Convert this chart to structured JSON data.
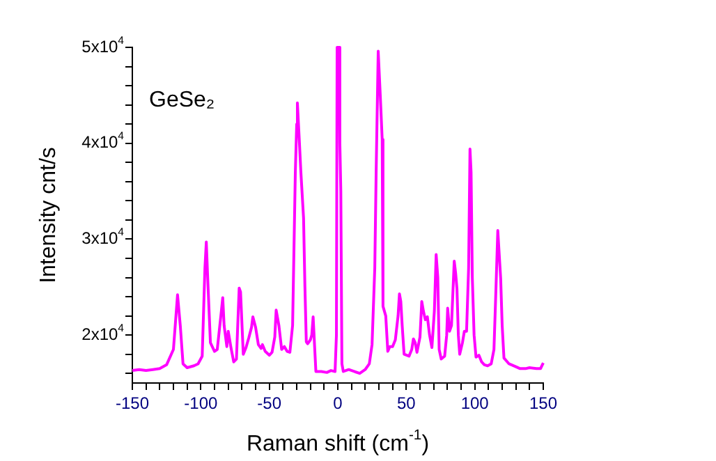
{
  "chart_data": {
    "type": "line",
    "xlabel": "Raman shift (cm$^{-1}$)",
    "ylabel": "Intensity cnt/s",
    "annotations": [
      "GeSe₂"
    ],
    "xlim": [
      -150,
      150
    ],
    "xticks": [
      -150,
      {
        "value": -140,
        "label": null
      },
      {
        "value": -130,
        "label": null
      },
      {
        "value": -120,
        "label": null
      },
      {
        "value": -110,
        "label": null
      },
      -100,
      {
        "value": -90,
        "label": null
      },
      {
        "value": -80,
        "label": null
      },
      {
        "value": -70,
        "label": null
      },
      {
        "value": -60,
        "label": null
      },
      -50,
      {
        "value": -40,
        "label": null
      },
      {
        "value": -30,
        "label": null
      },
      {
        "value": -20,
        "label": null
      },
      {
        "value": -10,
        "label": null
      },
      0,
      {
        "value": 10,
        "label": null
      },
      {
        "value": 20,
        "label": null
      },
      {
        "value": 30,
        "label": null
      },
      {
        "value": 40,
        "label": null
      },
      50,
      {
        "value": 60,
        "label": null
      },
      {
        "value": 70,
        "label": null
      },
      {
        "value": 80,
        "label": null
      },
      {
        "value": 90,
        "label": null
      },
      100,
      {
        "value": 110,
        "label": null
      },
      {
        "value": 120,
        "label": null
      },
      {
        "value": 130,
        "label": null
      },
      {
        "value": 140,
        "label": null
      },
      150
    ],
    "ylim": [
      15000,
      50000
    ],
    "yticks": [
      {
        "value": 16000,
        "label": null
      },
      {
        "value": 18000,
        "label": null
      },
      {
        "value": 20000,
        "label": "2x10$^{4}$"
      },
      {
        "value": 22000,
        "label": null
      },
      {
        "value": 24000,
        "label": null
      },
      {
        "value": 26000,
        "label": null
      },
      {
        "value": 28000,
        "label": null
      },
      {
        "value": 30000,
        "label": "3x10$^{4}$"
      },
      {
        "value": 32000,
        "label": null
      },
      {
        "value": 34000,
        "label": null
      },
      {
        "value": 36000,
        "label": null
      },
      {
        "value": 38000,
        "label": null
      },
      {
        "value": 40000,
        "label": "4x10$^{4}$"
      },
      {
        "value": 42000,
        "label": null
      },
      {
        "value": 44000,
        "label": null
      },
      {
        "value": 46000,
        "label": null
      },
      {
        "value": 48000,
        "label": null
      },
      {
        "value": 50000,
        "label": "5x10$^{4}$"
      }
    ],
    "grid": false,
    "legend": false,
    "marker": "none",
    "line_style": "solid",
    "series": [
      {
        "color": "#ff00ff",
        "x": [
          -150,
          -145,
          -140,
          -135,
          -130,
          -125,
          -120,
          -117,
          -115,
          -113,
          -110,
          -105,
          -102,
          -99,
          -97,
          -96,
          -95,
          -93,
          -90,
          -88,
          -85,
          -84,
          -83,
          -81,
          -80,
          -78,
          -76,
          -74,
          -72,
          -71,
          -69,
          -67,
          -65,
          -63,
          -62,
          -60,
          -58,
          -56,
          -55,
          -53,
          -50,
          -48,
          -46,
          -45,
          -43,
          -41,
          -39,
          -37,
          -35,
          -33,
          -31,
          -30,
          -29.5,
          -28,
          -27,
          -25,
          -24,
          -23,
          -22,
          -20,
          -19,
          -18,
          -17,
          -16,
          -12,
          -8,
          -5,
          -2,
          -1,
          -0.5,
          1,
          1.5,
          2.2,
          3,
          4,
          8,
          12,
          16,
          20,
          23,
          25,
          27,
          28,
          29.5,
          31,
          32.4,
          33,
          35,
          36.5,
          38,
          40,
          42,
          44,
          45,
          46,
          47,
          48.4,
          52,
          54,
          55.2,
          56.5,
          57.8,
          60,
          61.3,
          62.5,
          63.9,
          65.4,
          67,
          68.7,
          70.5,
          71.8,
          73,
          74,
          75.5,
          78,
          79.5,
          80.2,
          81.6,
          83,
          85,
          86,
          87,
          88,
          89,
          91,
          92.4,
          94,
          95.5,
          96.5,
          97.3,
          98.2,
          99.5,
          100.9,
          103,
          105,
          107,
          109.4,
          112,
          114,
          115.5,
          116.8,
          118.9,
          120,
          121.3,
          125,
          130,
          133.1,
          137,
          140,
          145,
          148,
          150
        ],
        "values": [
          16300,
          16400,
          16300,
          16400,
          16500,
          16900,
          18500,
          24200,
          21000,
          17000,
          16600,
          16800,
          17000,
          17800,
          27000,
          29700,
          26000,
          19200,
          18300,
          18500,
          22500,
          23900,
          21000,
          18800,
          20400,
          18700,
          17200,
          17500,
          24900,
          24500,
          18000,
          18700,
          19700,
          20800,
          21900,
          20800,
          19000,
          18600,
          19000,
          18300,
          17900,
          18200,
          19800,
          22600,
          21000,
          18500,
          18800,
          18300,
          18200,
          21000,
          37000,
          42000,
          44200,
          40000,
          37100,
          32200,
          25000,
          19300,
          19100,
          19500,
          20000,
          21900,
          19000,
          16200,
          16200,
          16100,
          16300,
          16200,
          20000,
          50000,
          50000,
          40000,
          35000,
          17000,
          16200,
          16400,
          16200,
          16000,
          16400,
          17000,
          19000,
          27000,
          37000,
          49600,
          45000,
          40400,
          23000,
          22000,
          18300,
          18800,
          18800,
          19500,
          22000,
          24300,
          23500,
          21000,
          18000,
          17800,
          18500,
          19600,
          19200,
          18200,
          19800,
          23500,
          22500,
          21600,
          21900,
          20000,
          18700,
          22500,
          28400,
          26000,
          18500,
          17500,
          17800,
          20000,
          22800,
          20400,
          21000,
          27700,
          26500,
          24800,
          20000,
          18000,
          19200,
          20400,
          20400,
          27000,
          39400,
          37000,
          26000,
          20000,
          17700,
          17900,
          17200,
          16900,
          16800,
          17000,
          18500,
          25000,
          30900,
          25900,
          21000,
          17600,
          17000,
          16700,
          16500,
          16500,
          16600,
          16500,
          16500,
          17100
        ]
      }
    ]
  }
}
